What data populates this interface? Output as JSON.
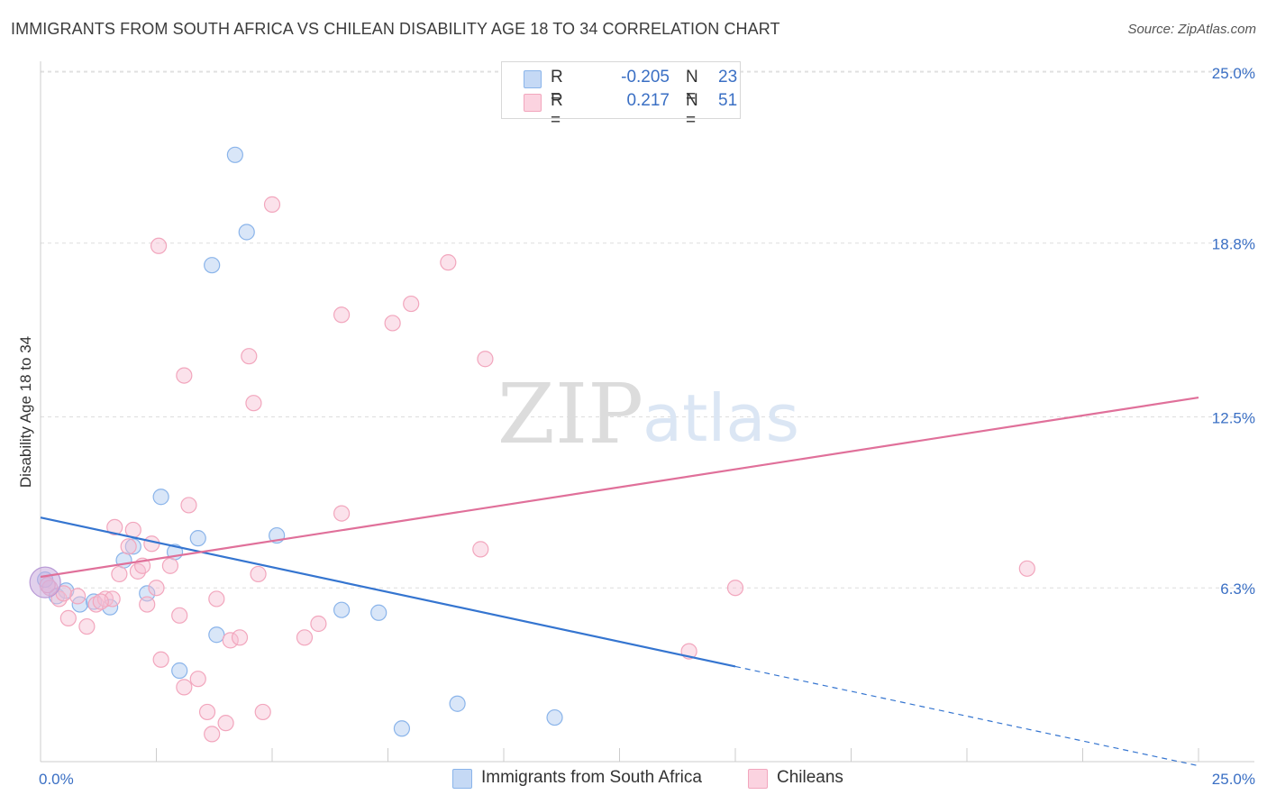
{
  "title": "IMMIGRANTS FROM SOUTH AFRICA VS CHILEAN DISABILITY AGE 18 TO 34 CORRELATION CHART",
  "source": "Source: ZipAtlas.com",
  "watermark": {
    "zip": "ZIP",
    "atlas": "atlas"
  },
  "legend": {
    "series1": {
      "r_label": "R =",
      "r_value": "-0.205",
      "n_label": "N =",
      "n_value": "23"
    },
    "series2": {
      "r_label": "R =",
      "r_value": "0.217",
      "n_label": "N =",
      "n_value": "51"
    }
  },
  "chart_data": {
    "type": "scatter",
    "title": "IMMIGRANTS FROM SOUTH AFRICA VS CHILEAN DISABILITY AGE 18 TO 34 CORRELATION CHART",
    "xlabel": "",
    "ylabel": "Disability Age 18 to 34",
    "xlim": [
      0,
      25
    ],
    "ylim": [
      0,
      25
    ],
    "x_tick_labels": [
      "0.0%",
      "25.0%"
    ],
    "y_ticks": [
      6.3,
      12.5,
      18.8,
      25.0
    ],
    "y_tick_labels": [
      "6.3%",
      "12.5%",
      "18.8%",
      "25.0%"
    ],
    "grid": true,
    "colors": {
      "blue": "#8ab4ea",
      "blue_line": "#3575d0",
      "pink": "#f2a6bd",
      "pink_line": "#e0709a",
      "tick_text": "#3a6fc4"
    },
    "series": [
      {
        "name": "Immigrants from South Africa",
        "color": "blue",
        "points": [
          [
            0.1,
            6.6
          ],
          [
            0.35,
            6.0
          ],
          [
            0.55,
            6.2
          ],
          [
            0.85,
            5.7
          ],
          [
            1.15,
            5.8
          ],
          [
            1.5,
            5.6
          ],
          [
            1.8,
            7.3
          ],
          [
            2.0,
            7.8
          ],
          [
            2.3,
            6.1
          ],
          [
            2.6,
            9.6
          ],
          [
            2.9,
            7.6
          ],
          [
            3.0,
            3.3
          ],
          [
            3.4,
            8.1
          ],
          [
            3.7,
            18.0
          ],
          [
            3.8,
            4.6
          ],
          [
            4.2,
            22.0
          ],
          [
            4.45,
            19.2
          ],
          [
            5.1,
            8.2
          ],
          [
            6.5,
            5.5
          ],
          [
            7.3,
            5.4
          ],
          [
            7.8,
            1.2
          ],
          [
            9.0,
            2.1
          ],
          [
            11.1,
            1.6
          ]
        ],
        "trend": {
          "x0": 0.0,
          "y0": 8.85,
          "x1": 15.0,
          "y1": 3.45,
          "dash_to_x": 25.0,
          "dash_to_y": -0.15
        }
      },
      {
        "name": "Chileans",
        "color": "pink",
        "points": [
          [
            0.2,
            6.3
          ],
          [
            0.4,
            5.9
          ],
          [
            0.6,
            5.2
          ],
          [
            0.8,
            6.0
          ],
          [
            1.0,
            4.9
          ],
          [
            1.2,
            5.7
          ],
          [
            1.4,
            5.9
          ],
          [
            1.6,
            8.5
          ],
          [
            1.7,
            6.8
          ],
          [
            1.9,
            7.8
          ],
          [
            2.0,
            8.4
          ],
          [
            2.1,
            6.9
          ],
          [
            2.2,
            7.1
          ],
          [
            2.3,
            5.7
          ],
          [
            2.5,
            6.3
          ],
          [
            2.55,
            18.7
          ],
          [
            2.6,
            3.7
          ],
          [
            2.8,
            7.1
          ],
          [
            3.0,
            5.3
          ],
          [
            3.1,
            2.7
          ],
          [
            3.1,
            14.0
          ],
          [
            3.2,
            9.3
          ],
          [
            3.4,
            3.0
          ],
          [
            3.6,
            1.8
          ],
          [
            3.7,
            1.0
          ],
          [
            3.8,
            5.9
          ],
          [
            4.0,
            1.4
          ],
          [
            4.1,
            4.4
          ],
          [
            4.3,
            4.5
          ],
          [
            4.5,
            14.7
          ],
          [
            4.6,
            13.0
          ],
          [
            4.7,
            6.8
          ],
          [
            4.8,
            1.8
          ],
          [
            5.0,
            20.2
          ],
          [
            5.7,
            4.5
          ],
          [
            6.0,
            5.0
          ],
          [
            6.5,
            16.2
          ],
          [
            6.5,
            9.0
          ],
          [
            7.6,
            15.9
          ],
          [
            8.0,
            16.6
          ],
          [
            8.8,
            18.1
          ],
          [
            9.5,
            7.7
          ],
          [
            9.6,
            14.6
          ],
          [
            14.0,
            4.0
          ],
          [
            15.0,
            6.3
          ],
          [
            21.3,
            7.0
          ],
          [
            1.55,
            5.9
          ],
          [
            0.15,
            6.4
          ],
          [
            2.4,
            7.9
          ],
          [
            0.5,
            6.1
          ],
          [
            1.3,
            5.8
          ]
        ],
        "trend": {
          "x0": 0.0,
          "y0": 6.7,
          "x1": 25.0,
          "y1": 13.2
        }
      }
    ]
  },
  "bottom_legend": {
    "item1": "Immigrants from South Africa",
    "item2": "Chileans"
  }
}
